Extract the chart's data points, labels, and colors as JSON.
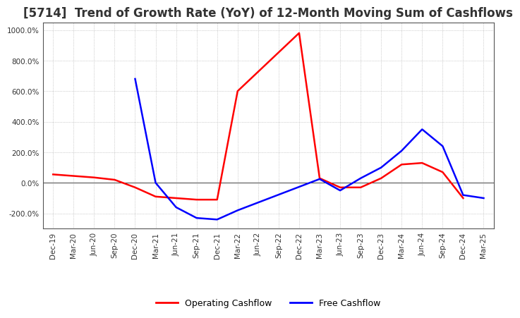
{
  "title": "[5714]  Trend of Growth Rate (YoY) of 12-Month Moving Sum of Cashflows",
  "title_fontsize": 12,
  "title_fontweight": "bold",
  "title_color": "#333333",
  "ylim": [
    -300,
    1050
  ],
  "yticks": [
    -200,
    0,
    200,
    400,
    600,
    800,
    1000
  ],
  "background_color": "#ffffff",
  "grid_color": "#aaaaaa",
  "grid_style": "dotted",
  "operating_color": "#ff0000",
  "free_color": "#0000ff",
  "legend_labels": [
    "Operating Cashflow",
    "Free Cashflow"
  ],
  "x_labels": [
    "Dec-19",
    "Mar-20",
    "Jun-20",
    "Sep-20",
    "Dec-20",
    "Mar-21",
    "Jun-21",
    "Sep-21",
    "Dec-21",
    "Mar-22",
    "Jun-22",
    "Sep-22",
    "Dec-22",
    "Mar-23",
    "Jun-23",
    "Sep-23",
    "Dec-23",
    "Mar-24",
    "Jun-24",
    "Sep-24",
    "Dec-24",
    "Mar-25"
  ],
  "operating_cashflow": [
    55,
    45,
    35,
    20,
    -30,
    -90,
    -100,
    -110,
    -110,
    600,
    null,
    null,
    980,
    30,
    -30,
    -30,
    30,
    120,
    130,
    70,
    -100,
    null
  ],
  "free_cashflow": [
    null,
    null,
    null,
    null,
    680,
    0,
    -160,
    -230,
    -240,
    -180,
    null,
    null,
    null,
    25,
    -50,
    30,
    100,
    210,
    350,
    240,
    -80,
    -100
  ]
}
